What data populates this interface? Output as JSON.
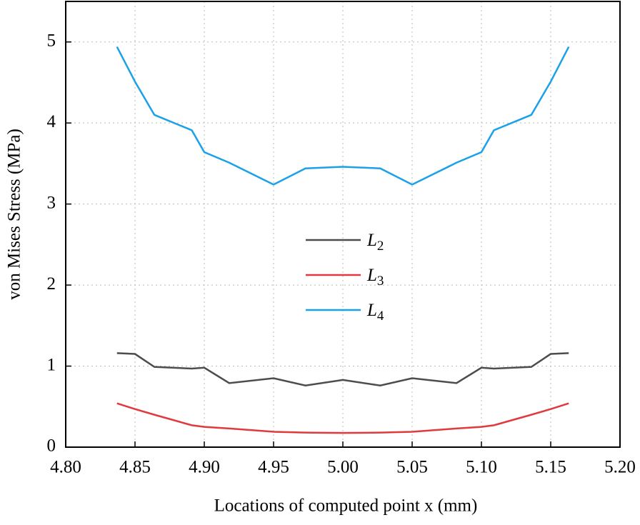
{
  "chart_data": {
    "type": "line",
    "x_label": "Locations of computed point x (mm)",
    "y_label": "von Mises Stress (MPa)",
    "x": [
      4.837,
      4.85,
      4.864,
      4.891,
      4.9,
      4.918,
      4.95,
      4.973,
      5.0,
      5.027,
      5.05,
      5.082,
      5.1,
      5.109,
      5.136,
      5.15,
      5.163
    ],
    "series": [
      {
        "name": "L2",
        "color": "#4d4d4d",
        "values": [
          1.16,
          1.15,
          0.99,
          0.97,
          0.98,
          0.79,
          0.85,
          0.76,
          0.83,
          0.76,
          0.85,
          0.79,
          0.98,
          0.97,
          0.99,
          1.15,
          1.16
        ]
      },
      {
        "name": "L3",
        "color": "#e0393e",
        "values": [
          0.54,
          0.47,
          0.4,
          0.27,
          0.25,
          0.23,
          0.19,
          0.18,
          0.175,
          0.18,
          0.19,
          0.23,
          0.25,
          0.27,
          0.4,
          0.47,
          0.54
        ]
      },
      {
        "name": "L4",
        "color": "#1ba1e9",
        "values": [
          4.94,
          4.51,
          4.1,
          3.91,
          3.64,
          3.51,
          3.24,
          3.44,
          3.46,
          3.44,
          3.24,
          3.51,
          3.64,
          3.91,
          4.1,
          4.51,
          4.94
        ]
      }
    ],
    "xlim": [
      4.8,
      5.2
    ],
    "xticks": [
      {
        "value": 4.8,
        "label": "4.80"
      },
      4.85,
      {
        "value": 4.9,
        "label": "4.90"
      },
      4.95,
      {
        "value": 5.0,
        "label": "5.00"
      },
      5.05,
      {
        "value": 5.1,
        "label": "5.10"
      },
      5.15,
      {
        "value": 5.2,
        "label": "5.20"
      }
    ],
    "ylim": [
      0,
      5.5
    ],
    "yticks": [
      0,
      1,
      2,
      3,
      4,
      5
    ],
    "grid": true
  }
}
